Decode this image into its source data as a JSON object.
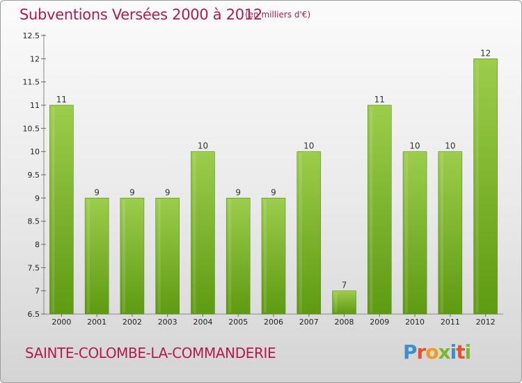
{
  "header": {
    "title": "Subventions Versées 2000 à 2012",
    "unit": "(en milliers d'€)"
  },
  "footer": {
    "commune": "SAINTE-COLOMBE-LA-COMMANDERIE",
    "logo": [
      "P",
      "r",
      "o",
      "x",
      "i",
      "t",
      "i"
    ]
  },
  "colors": {
    "bar_top": "#9ccd4c",
    "bar_bottom": "#5e9a12",
    "accent": "#b5194c",
    "grid": "#d8d8d8"
  },
  "chart_data": {
    "type": "bar",
    "title": "Subventions Versées 2000 à 2012",
    "subtitle": "(en milliers d'€)",
    "xlabel": "",
    "ylabel": "",
    "categories": [
      "2000",
      "2001",
      "2002",
      "2003",
      "2004",
      "2005",
      "2006",
      "2007",
      "2008",
      "2009",
      "2010",
      "2011",
      "2012"
    ],
    "values": [
      11,
      9,
      9,
      9,
      10,
      9,
      9,
      10,
      7,
      11,
      10,
      10,
      12
    ],
    "ylim": [
      6.5,
      12.5
    ],
    "yticks": [
      "6.5",
      "7",
      "7.5",
      "8",
      "8.5",
      "9",
      "9.5",
      "10",
      "10.5",
      "11",
      "11.5",
      "12",
      "12.5"
    ],
    "grid": false,
    "legend": "none"
  }
}
